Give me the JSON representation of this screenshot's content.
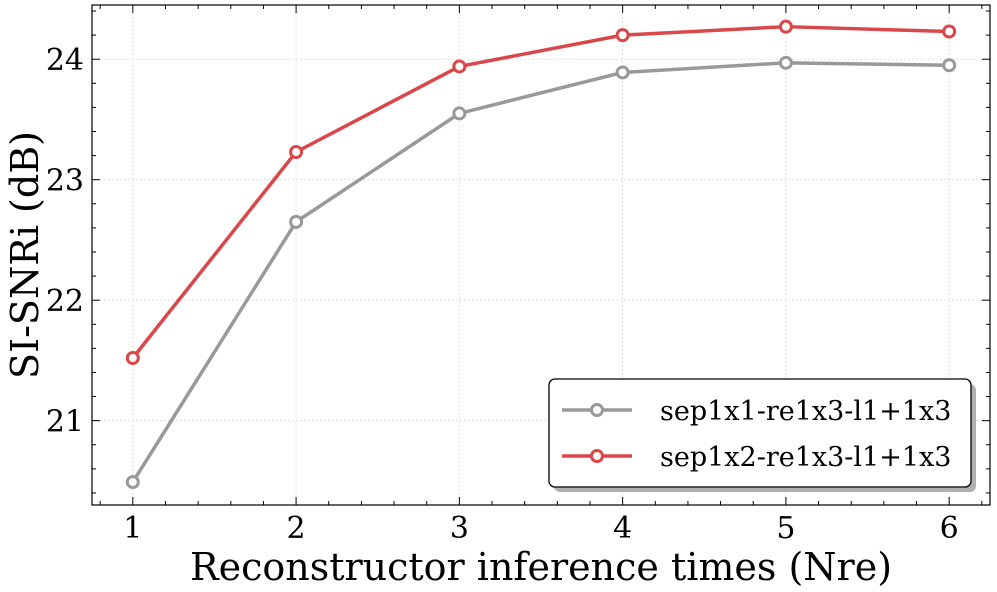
{
  "chart_data": {
    "type": "line",
    "title": "",
    "xlabel": "Reconstructor inference times (Nre)",
    "ylabel": "SI-SNRi (dB)",
    "x": [
      1,
      2,
      3,
      4,
      5,
      6
    ],
    "xlim": [
      0.75,
      6.25
    ],
    "ylim": [
      20.3,
      24.45
    ],
    "xticks": [
      1,
      2,
      3,
      4,
      5,
      6
    ],
    "yticks": [
      21,
      22,
      23,
      24
    ],
    "grid": true,
    "legend_position": "lower-right",
    "series": [
      {
        "name": "sep1x1-re1x3-l1+1x3",
        "color": "#999999",
        "values": [
          20.49,
          22.65,
          23.55,
          23.89,
          23.97,
          23.95
        ]
      },
      {
        "name": "sep1x2-re1x3-l1+1x3",
        "color": "#d9474a",
        "values": [
          21.52,
          23.23,
          23.94,
          24.2,
          24.27,
          24.23
        ]
      }
    ]
  }
}
